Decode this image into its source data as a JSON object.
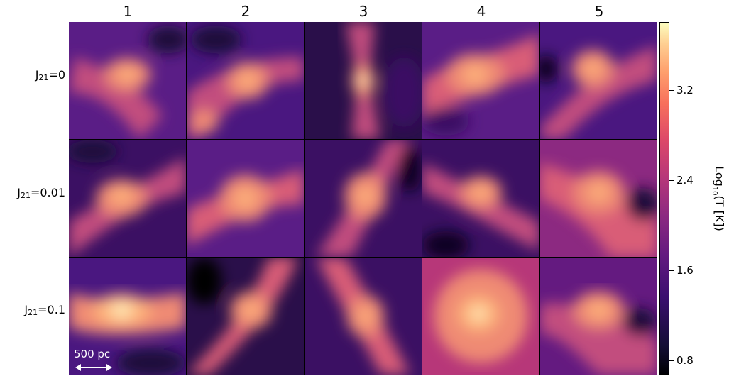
{
  "columns": [
    "1",
    "2",
    "3",
    "4",
    "5"
  ],
  "rows": [
    {
      "prefix": "J",
      "sub": "21",
      "suffix": "=0"
    },
    {
      "prefix": "J",
      "sub": "21",
      "suffix": "=0.01"
    },
    {
      "prefix": "J",
      "sub": "21",
      "suffix": "=0.1"
    }
  ],
  "colorbar": {
    "title_prefix": "Log",
    "title_sub": "10",
    "title_suffix": "(T [K])",
    "ticks": [
      "3.2",
      "2.4",
      "1.6",
      "0.8"
    ],
    "colormap": "magma"
  },
  "scalebar": {
    "label": "500 pc"
  },
  "colors": {
    "background": "#2a0f4a",
    "filament_mid": "#c24d7e",
    "filament_hot": "#fdb07a",
    "core": "#fde4b0"
  }
}
